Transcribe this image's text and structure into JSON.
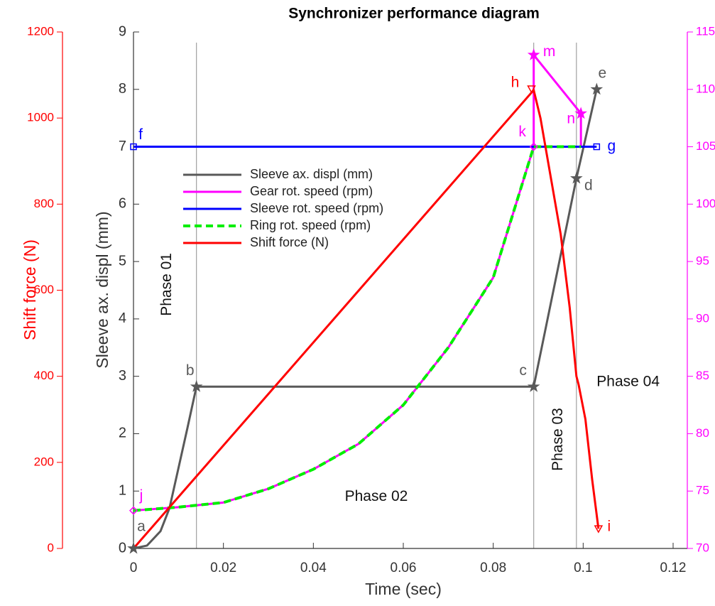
{
  "chart_data": {
    "type": "line",
    "title": "Synchronizer performance diagram",
    "xlabel": "Time (sec)",
    "ylabel": "Sleeve ax. displ (mm)",
    "y3label": "Shift force (N)",
    "xlim": [
      0,
      0.12
    ],
    "xticks": [
      0,
      0.02,
      0.04,
      0.06,
      0.08,
      0.1,
      0.12
    ],
    "ylim": [
      0,
      9
    ],
    "yticks": [
      0,
      1,
      2,
      3,
      4,
      5,
      6,
      7,
      8,
      9
    ],
    "y2lim": [
      70,
      115
    ],
    "y2ticks": [
      70,
      75,
      80,
      85,
      90,
      95,
      100,
      105,
      110,
      115
    ],
    "y3lim": [
      0,
      1200
    ],
    "y3ticks": [
      0,
      200,
      400,
      600,
      800,
      1000,
      1200
    ],
    "axis_colors": {
      "y": "#333333",
      "y2": "#ff00ff",
      "y3": "#ff0000"
    },
    "grid": false,
    "xlines": [
      0.014,
      0.089,
      0.0985
    ],
    "series": [
      {
        "name": "Sleeve ax. displ (mm)",
        "color": "#595959",
        "axis": "y",
        "dashed": false,
        "x": [
          0,
          0.003,
          0.006,
          0.008,
          0.01,
          0.012,
          0.014,
          0.089,
          0.0985,
          0.103
        ],
        "values": [
          0,
          0.05,
          0.3,
          0.7,
          1.4,
          2.1,
          2.82,
          2.82,
          6.45,
          8.0
        ]
      },
      {
        "name": "Gear rot. speed (rpm)",
        "color": "#ff00ff",
        "axis": "y2",
        "dashed": false,
        "x": [
          0,
          0.01,
          0.02,
          0.03,
          0.04,
          0.05,
          0.06,
          0.07,
          0.08,
          0.089,
          0.089,
          0.0995,
          0.0995
        ],
        "values": [
          73.3,
          73.6,
          74.0,
          75.2,
          76.9,
          79.1,
          82.5,
          87.5,
          93.6,
          105,
          113,
          107.9,
          105
        ]
      },
      {
        "name": "Sleeve rot. speed (rpm)",
        "color": "#0000ff",
        "axis": "y2",
        "dashed": false,
        "x": [
          0,
          0.103
        ],
        "values": [
          105,
          105
        ]
      },
      {
        "name": "Ring rot. speed (rpm)",
        "color": "#00ee00",
        "axis": "y2",
        "dashed": true,
        "x": [
          0,
          0.01,
          0.02,
          0.03,
          0.04,
          0.05,
          0.06,
          0.07,
          0.08,
          0.089,
          0.0995
        ],
        "values": [
          73.3,
          73.6,
          74.0,
          75.2,
          76.9,
          79.1,
          82.5,
          87.5,
          93.6,
          105,
          105
        ]
      },
      {
        "name": "Shift force (N)",
        "color": "#ff0000",
        "axis": "y3",
        "dashed": false,
        "x": [
          0,
          0.089,
          0.0905,
          0.093,
          0.095,
          0.097,
          0.0985,
          0.099,
          0.1005,
          0.102,
          0.1034
        ],
        "values": [
          0,
          1065,
          1000,
          850,
          730,
          560,
          400,
          380,
          300,
          160,
          46
        ]
      }
    ],
    "annotations": [
      {
        "text": "a",
        "x": 0,
        "y": 0,
        "axis": "y",
        "color": "#595959",
        "marker": "star"
      },
      {
        "text": "b",
        "x": 0.014,
        "y": 2.82,
        "axis": "y",
        "color": "#595959",
        "marker": "star"
      },
      {
        "text": "c",
        "x": 0.089,
        "y": 2.82,
        "axis": "y",
        "color": "#595959",
        "marker": "star"
      },
      {
        "text": "d",
        "x": 0.0985,
        "y": 6.45,
        "axis": "y",
        "color": "#595959",
        "marker": "star"
      },
      {
        "text": "e",
        "x": 0.103,
        "y": 8.0,
        "axis": "y",
        "color": "#595959",
        "marker": "star"
      },
      {
        "text": "f",
        "x": 0,
        "y": 105,
        "axis": "y2",
        "color": "#0000ff",
        "marker": "square"
      },
      {
        "text": "g",
        "x": 0.103,
        "y": 105,
        "axis": "y2",
        "color": "#0000ff",
        "marker": "square"
      },
      {
        "text": "h",
        "x": 0.0885,
        "y": 1068,
        "axis": "y3",
        "color": "#ff0000",
        "marker": "triangle"
      },
      {
        "text": "i",
        "x": 0.1034,
        "y": 46,
        "axis": "y3",
        "color": "#ff0000",
        "marker": "triangle"
      },
      {
        "text": "j",
        "x": 0,
        "y": 73.3,
        "axis": "y2",
        "color": "#ff00ff",
        "marker": "diamond"
      },
      {
        "text": "k",
        "x": 0.089,
        "y": 105,
        "axis": "y2",
        "color": "#ff00ff",
        "marker": "diamond"
      },
      {
        "text": "m",
        "x": 0.089,
        "y": 113,
        "axis": "y2",
        "color": "#ff00ff",
        "marker": "star"
      },
      {
        "text": "n",
        "x": 0.0995,
        "y": 107.9,
        "axis": "y2",
        "color": "#ff00ff",
        "marker": "star"
      }
    ],
    "phase_labels": [
      {
        "text": "Phase 01",
        "x": 0.0075,
        "y": 4.6,
        "vertical": true
      },
      {
        "text": "Phase 02",
        "x": 0.054,
        "y": 0.9,
        "vertical": false
      },
      {
        "text": "Phase 03",
        "x": 0.0945,
        "y": 1.9,
        "vertical": true
      },
      {
        "text": "Phase 04",
        "x": 0.11,
        "y": 2.9,
        "vertical": false
      }
    ]
  }
}
